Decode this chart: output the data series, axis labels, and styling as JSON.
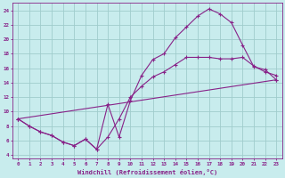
{
  "xlabel": "Windchill (Refroidissement éolien,°C)",
  "bg_color": "#c8eced",
  "grid_color": "#a0cccc",
  "line_color": "#882288",
  "xlim": [
    -0.5,
    23.5
  ],
  "ylim": [
    3.5,
    25.0
  ],
  "xticks": [
    0,
    1,
    2,
    3,
    4,
    5,
    6,
    7,
    8,
    9,
    10,
    11,
    12,
    13,
    14,
    15,
    16,
    17,
    18,
    19,
    20,
    21,
    22,
    23
  ],
  "yticks": [
    4,
    6,
    8,
    10,
    12,
    14,
    16,
    18,
    20,
    22,
    24
  ],
  "line1_x": [
    0,
    1,
    2,
    3,
    4,
    5,
    6,
    7,
    8,
    9,
    10,
    11,
    12,
    13,
    14,
    15,
    16,
    17,
    18,
    19,
    20,
    21,
    22,
    23
  ],
  "line1_y": [
    9.0,
    8.0,
    7.2,
    6.7,
    5.8,
    5.3,
    6.2,
    4.8,
    11.0,
    6.5,
    11.5,
    15.0,
    17.2,
    18.0,
    20.2,
    21.7,
    23.2,
    24.2,
    23.5,
    22.3,
    19.2,
    16.2,
    15.8,
    14.4
  ],
  "line2_x": [
    0,
    1,
    2,
    3,
    4,
    5,
    6,
    7,
    8,
    9,
    10,
    11,
    12,
    13,
    14,
    15,
    16,
    17,
    18,
    19,
    20,
    21,
    22,
    23
  ],
  "line2_y": [
    9.0,
    8.0,
    7.2,
    6.7,
    5.8,
    5.3,
    6.2,
    4.8,
    6.5,
    9.0,
    12.0,
    13.5,
    14.8,
    15.5,
    16.5,
    17.5,
    17.5,
    17.5,
    17.3,
    17.3,
    17.5,
    16.3,
    15.5,
    15.0
  ],
  "line3_x": [
    0,
    23
  ],
  "line3_y": [
    9.0,
    14.4
  ]
}
